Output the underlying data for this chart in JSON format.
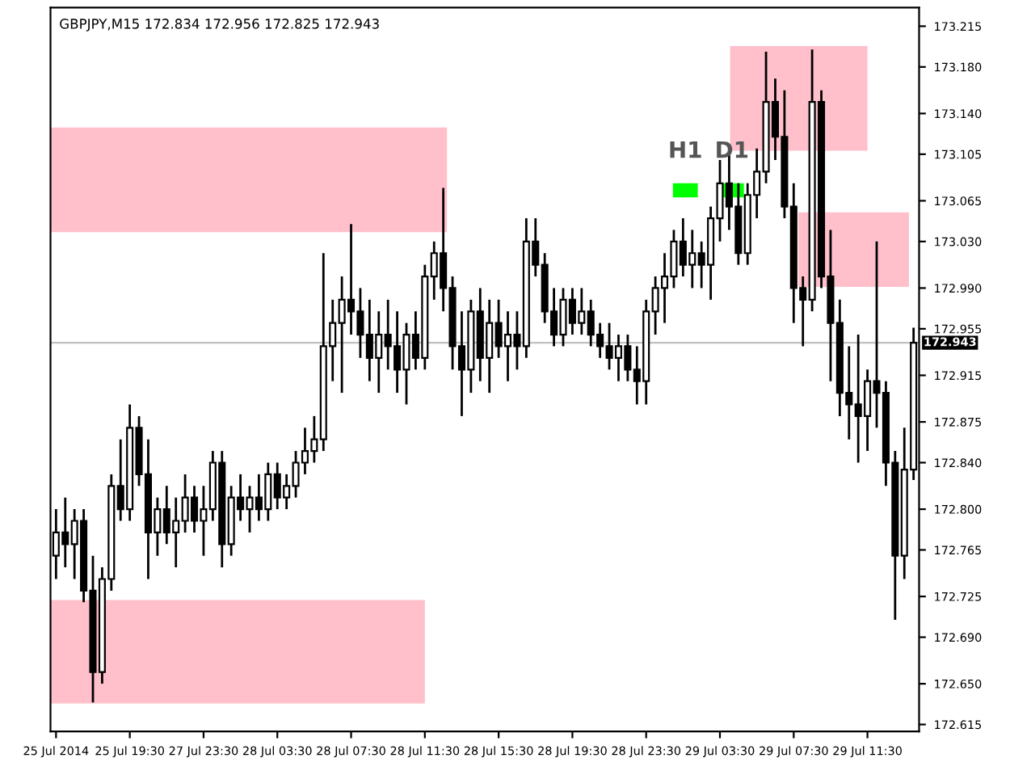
{
  "chart_data": {
    "type": "candlestick",
    "title": "GBPJPY,M15 172.834 172.956 172.825 172.943",
    "categories": [
      "25 Jul 2014",
      null,
      null,
      null,
      null,
      null,
      null,
      null,
      "25 Jul 19:30",
      null,
      null,
      null,
      null,
      null,
      null,
      null,
      "27 Jul 23:30",
      null,
      null,
      null,
      null,
      null,
      null,
      null,
      "28 Jul 03:30",
      null,
      null,
      null,
      null,
      null,
      null,
      null,
      "28 Jul 07:30",
      null,
      null,
      null,
      null,
      null,
      null,
      null,
      "28 Jul 11:30",
      null,
      null,
      null,
      null,
      null,
      null,
      null,
      "28 Jul 15:30",
      null,
      null,
      null,
      null,
      null,
      null,
      null,
      "28 Jul 19:30",
      null,
      null,
      null,
      null,
      null,
      null,
      null,
      "28 Jul 23:30",
      null,
      null,
      null,
      null,
      null,
      null,
      null,
      "29 Jul 03:30",
      null,
      null,
      null,
      null,
      null,
      null,
      null,
      "29 Jul 07:30",
      null,
      null,
      null,
      null,
      null,
      null,
      null,
      "29 Jul 11:30",
      null,
      null,
      null,
      null,
      null
    ],
    "color": "#000000",
    "ohlc": [
      [
        172.76,
        172.8,
        172.74,
        172.78
      ],
      [
        172.78,
        172.81,
        172.75,
        172.77
      ],
      [
        172.77,
        172.8,
        172.74,
        172.79
      ],
      [
        172.79,
        172.8,
        172.72,
        172.73
      ],
      [
        172.73,
        172.76,
        172.634,
        172.66
      ],
      [
        172.66,
        172.75,
        172.65,
        172.74
      ],
      [
        172.74,
        172.83,
        172.73,
        172.82
      ],
      [
        172.82,
        172.86,
        172.79,
        172.8
      ],
      [
        172.8,
        172.89,
        172.79,
        172.87
      ],
      [
        172.87,
        172.88,
        172.82,
        172.83
      ],
      [
        172.83,
        172.86,
        172.74,
        172.78
      ],
      [
        172.78,
        172.81,
        172.76,
        172.8
      ],
      [
        172.8,
        172.82,
        172.77,
        172.78
      ],
      [
        172.78,
        172.81,
        172.75,
        172.79
      ],
      [
        172.79,
        172.83,
        172.78,
        172.81
      ],
      [
        172.81,
        172.82,
        172.78,
        172.79
      ],
      [
        172.79,
        172.82,
        172.76,
        172.8
      ],
      [
        172.8,
        172.85,
        172.79,
        172.84
      ],
      [
        172.84,
        172.85,
        172.75,
        172.77
      ],
      [
        172.77,
        172.82,
        172.76,
        172.81
      ],
      [
        172.81,
        172.83,
        172.79,
        172.8
      ],
      [
        172.8,
        172.82,
        172.78,
        172.81
      ],
      [
        172.81,
        172.83,
        172.79,
        172.8
      ],
      [
        172.8,
        172.84,
        172.79,
        172.83
      ],
      [
        172.83,
        172.84,
        172.8,
        172.81
      ],
      [
        172.81,
        172.83,
        172.8,
        172.82
      ],
      [
        172.82,
        172.85,
        172.81,
        172.84
      ],
      [
        172.84,
        172.87,
        172.83,
        172.85
      ],
      [
        172.85,
        172.88,
        172.84,
        172.86
      ],
      [
        172.86,
        173.02,
        172.85,
        172.94
      ],
      [
        172.94,
        172.98,
        172.91,
        172.96
      ],
      [
        172.96,
        173.0,
        172.9,
        172.98
      ],
      [
        172.98,
        173.045,
        172.95,
        172.97
      ],
      [
        172.97,
        172.99,
        172.93,
        172.95
      ],
      [
        172.95,
        172.98,
        172.91,
        172.93
      ],
      [
        172.93,
        172.97,
        172.9,
        172.95
      ],
      [
        172.95,
        172.98,
        172.92,
        172.94
      ],
      [
        172.94,
        172.97,
        172.9,
        172.92
      ],
      [
        172.92,
        172.96,
        172.89,
        172.95
      ],
      [
        172.95,
        172.97,
        172.92,
        172.93
      ],
      [
        172.93,
        173.01,
        172.92,
        173.0
      ],
      [
        173.0,
        173.03,
        172.98,
        173.02
      ],
      [
        173.02,
        173.076,
        172.97,
        172.99
      ],
      [
        172.99,
        173.0,
        172.92,
        172.94
      ],
      [
        172.94,
        172.97,
        172.88,
        172.92
      ],
      [
        172.92,
        172.98,
        172.9,
        172.97
      ],
      [
        172.97,
        172.99,
        172.91,
        172.93
      ],
      [
        172.93,
        172.98,
        172.9,
        172.96
      ],
      [
        172.96,
        172.98,
        172.93,
        172.94
      ],
      [
        172.94,
        172.97,
        172.91,
        172.95
      ],
      [
        172.95,
        172.97,
        172.92,
        172.94
      ],
      [
        172.94,
        173.05,
        172.93,
        173.03
      ],
      [
        173.03,
        173.05,
        173.0,
        173.01
      ],
      [
        173.01,
        173.02,
        172.96,
        172.97
      ],
      [
        172.97,
        172.99,
        172.94,
        172.95
      ],
      [
        172.95,
        172.99,
        172.94,
        172.98
      ],
      [
        172.98,
        172.99,
        172.95,
        172.96
      ],
      [
        172.96,
        172.99,
        172.95,
        172.97
      ],
      [
        172.97,
        172.98,
        172.94,
        172.95
      ],
      [
        172.95,
        172.96,
        172.93,
        172.94
      ],
      [
        172.94,
        172.96,
        172.92,
        172.93
      ],
      [
        172.93,
        172.95,
        172.91,
        172.94
      ],
      [
        172.94,
        172.95,
        172.91,
        172.92
      ],
      [
        172.92,
        172.94,
        172.89,
        172.91
      ],
      [
        172.91,
        172.98,
        172.89,
        172.97
      ],
      [
        172.97,
        173.0,
        172.95,
        172.99
      ],
      [
        172.99,
        173.02,
        172.96,
        173.0
      ],
      [
        173.0,
        173.04,
        172.99,
        173.03
      ],
      [
        173.03,
        173.05,
        173.0,
        173.01
      ],
      [
        173.01,
        173.04,
        172.99,
        173.02
      ],
      [
        173.02,
        173.03,
        172.99,
        173.01
      ],
      [
        173.01,
        173.06,
        172.98,
        173.05
      ],
      [
        173.05,
        173.1,
        173.03,
        173.08
      ],
      [
        173.08,
        173.11,
        173.04,
        173.06
      ],
      [
        173.06,
        173.08,
        173.01,
        173.02
      ],
      [
        173.02,
        173.08,
        173.01,
        173.07
      ],
      [
        173.07,
        173.11,
        173.05,
        173.09
      ],
      [
        173.09,
        173.193,
        173.08,
        173.15
      ],
      [
        173.15,
        173.17,
        173.1,
        173.12
      ],
      [
        173.12,
        173.16,
        173.05,
        173.06
      ],
      [
        173.06,
        173.08,
        172.96,
        172.99
      ],
      [
        172.99,
        173.0,
        172.94,
        172.98
      ],
      [
        172.98,
        173.195,
        172.97,
        173.15
      ],
      [
        173.15,
        173.16,
        172.99,
        173.0
      ],
      [
        173.0,
        173.04,
        172.91,
        172.96
      ],
      [
        172.96,
        172.98,
        172.88,
        172.9
      ],
      [
        172.9,
        172.94,
        172.86,
        172.89
      ],
      [
        172.89,
        172.95,
        172.84,
        172.88
      ],
      [
        172.88,
        172.92,
        172.85,
        172.91
      ],
      [
        172.91,
        173.03,
        172.87,
        172.9
      ],
      [
        172.9,
        172.91,
        172.82,
        172.84
      ],
      [
        172.84,
        172.85,
        172.705,
        172.76
      ],
      [
        172.76,
        172.87,
        172.74,
        172.834
      ],
      [
        172.834,
        172.956,
        172.825,
        172.943
      ]
    ],
    "ylim": [
      172.609,
      173.231
    ],
    "yticks": [
      172.615,
      {
        "value": 172.65,
        "label": "172.650"
      },
      {
        "value": 172.69,
        "label": "172.690"
      },
      172.725,
      172.765,
      {
        "value": 172.8,
        "label": "172.800"
      },
      {
        "value": 172.84,
        "label": "172.840"
      },
      172.875,
      172.915,
      172.955,
      {
        "value": 172.99,
        "label": "172.990"
      },
      {
        "value": 173.03,
        "label": "173.030"
      },
      173.065,
      173.105,
      {
        "value": 173.14,
        "label": "173.140"
      },
      {
        "value": 173.18,
        "label": "173.180"
      },
      173.215
    ],
    "annotations": [
      "H1",
      "D1"
    ],
    "ref_lines": [
      {
        "axis": "y",
        "value": 172.943,
        "label": "172.943",
        "color": "#c0c0c0"
      }
    ],
    "bands": [
      {
        "axis": "y",
        "from": 173.038,
        "to": 173.128,
        "color": "#ffc0cb"
      },
      {
        "axis": "y",
        "from": 172.633,
        "to": 172.722,
        "color": "#ffc0cb"
      },
      {
        "axis": "y",
        "from": 173.108,
        "to": 173.198,
        "color": "#ffc0cb"
      },
      {
        "axis": "y",
        "from": 172.991,
        "to": 173.055,
        "color": "#ffc0cb"
      }
    ],
    "grid": false,
    "legend": false
  }
}
